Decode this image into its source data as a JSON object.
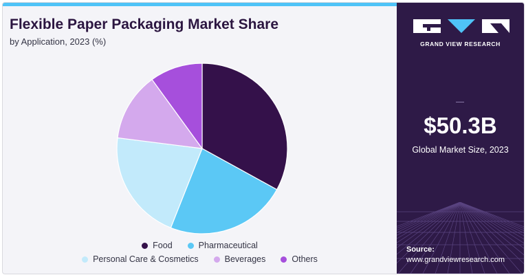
{
  "header": {
    "title": "Flexible Paper Packaging Market Share",
    "subtitle": "by Application, 2023 (%)"
  },
  "chart_data": {
    "type": "pie",
    "title": "Flexible Paper Packaging Market Share",
    "subtitle": "by Application, 2023 (%)",
    "categories": [
      "Food",
      "Pharmaceutical",
      "Personal Care & Cosmetics",
      "Beverages",
      "Others"
    ],
    "values": [
      33,
      23,
      21,
      13,
      10
    ],
    "colors": [
      "#34114a",
      "#5bc8f5",
      "#c2eafb",
      "#d4a9ed",
      "#a64fdc"
    ],
    "start_angle_deg": 0,
    "direction": "clockwise",
    "legend_position": "bottom"
  },
  "sidebar": {
    "brand": "GRAND VIEW RESEARCH",
    "market_size": "$50.3B",
    "market_size_label": "Global Market Size, 2023",
    "source_label": "Source:",
    "source_url": "www.grandviewresearch.com"
  }
}
